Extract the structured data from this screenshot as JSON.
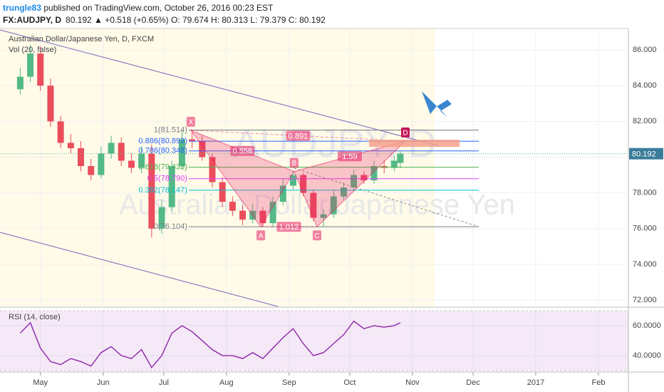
{
  "header": {
    "publisher": "trungle83",
    "published": " published on TradingView.com, October 26, 2016 00:23 EST",
    "symbol": "FX:AUDJPY, D",
    "quote": "80.192 ▲ +0.518 (+0.65%) O: 79.674 H: 80.313 L: 79.379 C: 80.192"
  },
  "chart_data": [
    {
      "type": "candlestick",
      "title": "Australian Dollar/Japanese Yen, D, FXCM",
      "subtitle": "Vol (20, false)",
      "watermark": [
        "AUDJPY, D",
        "Australian Dollar/Japanese Yen"
      ],
      "x": [
        -10,
        -5,
        0,
        5,
        10,
        15,
        20,
        25,
        30,
        35,
        40,
        45,
        50,
        55,
        60,
        65,
        70,
        75,
        80,
        85,
        90,
        95,
        100,
        105,
        110,
        115,
        120,
        125,
        130,
        135,
        140,
        145,
        150,
        155,
        160,
        165,
        170,
        175,
        178
      ],
      "open": [
        83.8,
        84.5,
        85.8,
        84.0,
        82.0,
        80.8,
        80.5,
        79.5,
        79.0,
        80.2,
        80.8,
        79.8,
        79.4,
        80.2,
        76.0,
        77.2,
        79.5,
        81.0,
        80.9,
        80.0,
        78.6,
        77.5,
        77.0,
        76.5,
        77.0,
        76.3,
        77.5,
        78.4,
        79.0,
        78.0,
        76.6,
        76.8,
        77.8,
        78.3,
        79.0,
        78.7,
        79.5,
        79.4,
        79.674
      ],
      "high": [
        85.0,
        86.3,
        86.2,
        84.4,
        82.3,
        81.3,
        80.9,
        79.9,
        80.6,
        81.2,
        81.1,
        80.2,
        80.6,
        80.7,
        77.6,
        79.8,
        81.5,
        81.4,
        81.2,
        80.2,
        78.9,
        77.8,
        77.3,
        77.4,
        77.2,
        77.8,
        78.8,
        79.2,
        79.1,
        78.2,
        77.1,
        78.1,
        78.6,
        79.3,
        79.2,
        79.8,
        79.8,
        80.1,
        80.313
      ],
      "low": [
        83.5,
        84.2,
        83.7,
        81.7,
        80.5,
        80.2,
        79.2,
        78.7,
        78.8,
        79.9,
        79.5,
        79.1,
        79.1,
        75.5,
        75.7,
        77.0,
        79.3,
        80.5,
        79.8,
        78.3,
        77.2,
        76.7,
        76.2,
        76.3,
        76.1,
        76.1,
        77.3,
        78.2,
        77.8,
        76.4,
        76.1,
        76.6,
        77.6,
        78.1,
        78.5,
        78.5,
        79.1,
        79.2,
        79.379
      ],
      "close": [
        84.5,
        85.8,
        84.0,
        82.0,
        80.8,
        80.5,
        79.5,
        79.0,
        80.2,
        80.8,
        79.8,
        79.4,
        80.2,
        76.0,
        77.2,
        79.5,
        81.0,
        80.9,
        80.0,
        78.6,
        77.5,
        77.0,
        76.5,
        77.0,
        76.3,
        77.5,
        78.4,
        79.0,
        78.0,
        76.6,
        76.8,
        77.8,
        78.3,
        79.0,
        78.7,
        79.5,
        79.4,
        79.8,
        80.192
      ],
      "up_color": "#53b987",
      "down_color": "#eb4d5c",
      "xlim": [
        -20,
        290.8
      ],
      "ylim": [
        71.64,
        87.2
      ],
      "yticks": [
        {
          "value": 72,
          "label": "72.000"
        },
        {
          "value": 74,
          "label": "74.000"
        },
        {
          "value": 76,
          "label": "76.000"
        },
        {
          "value": 78,
          "label": "78.000"
        },
        {
          "value": 80,
          "label": "80.000"
        },
        {
          "value": 82,
          "label": "82.000"
        },
        {
          "value": 84,
          "label": "84.000"
        },
        {
          "value": 86,
          "label": "86.000"
        }
      ],
      "last_price": {
        "value": 80.192,
        "label": "80.192"
      },
      "pattern": {
        "labels": [
          "X",
          "A",
          "B",
          "C",
          "D"
        ],
        "x": [
          74.4,
          109,
          125.5,
          136.8,
          180.5
        ],
        "y": [
          81.5,
          76.1,
          79.2,
          76.1,
          80.9
        ],
        "ratios": [
          "0.558",
          "0.891",
          "1.012",
          "1.59"
        ],
        "color": "#e91e63"
      },
      "fib_levels": [
        {
          "value": 81.514,
          "label": "1(81.514)",
          "color": "#787b86"
        },
        {
          "value": 80.893,
          "label": "0.886(80.893)",
          "color": "#2962ff"
        },
        {
          "value": 80.348,
          "label": "0.786(80.348)",
          "color": "#2962ff"
        },
        {
          "value": 79.433,
          "label": "0.618(79.433)",
          "color": "#4caf50"
        },
        {
          "value": 78.79,
          "label": "0.5(78.790)",
          "color": "#e040fb"
        },
        {
          "value": 78.147,
          "label": "0.382(78.147)",
          "color": "#00bcd4"
        },
        {
          "value": 76.104,
          "label": "0(76.104)",
          "color": "#787b86"
        }
      ]
    },
    {
      "type": "line",
      "title": "RSI (14, close)",
      "color": "#8e24aa",
      "x": [
        -10,
        -5,
        0,
        5,
        10,
        15,
        20,
        25,
        30,
        35,
        40,
        45,
        50,
        55,
        60,
        65,
        70,
        75,
        80,
        85,
        90,
        95,
        100,
        105,
        110,
        115,
        120,
        125,
        130,
        135,
        140,
        145,
        150,
        155,
        160,
        165,
        170,
        175,
        178
      ],
      "values": [
        55,
        62,
        45,
        36,
        34,
        38,
        36,
        33,
        42,
        46,
        40,
        38,
        44,
        32,
        40,
        55,
        60,
        56,
        50,
        44,
        40,
        40,
        38,
        42,
        38,
        45,
        52,
        58,
        48,
        40,
        42,
        48,
        54,
        63,
        58,
        60,
        59,
        60,
        62
      ],
      "band": [
        30,
        70
      ],
      "xlim": [
        -20,
        290.8
      ],
      "ylim": [
        29,
        71.4
      ],
      "yticks": [
        {
          "value": 40,
          "label": "40.0000"
        },
        {
          "value": 60,
          "label": "60.0000"
        }
      ],
      "xticks": [
        {
          "value": 0,
          "label": "May"
        },
        {
          "value": 31,
          "label": "Jun"
        },
        {
          "value": 61,
          "label": "Jul"
        },
        {
          "value": 92,
          "label": "Aug"
        },
        {
          "value": 123,
          "label": "Sep"
        },
        {
          "value": 153,
          "label": "Oct"
        },
        {
          "value": 184,
          "label": "Nov"
        },
        {
          "value": 214,
          "label": "Dec"
        },
        {
          "value": 245,
          "label": "2017"
        },
        {
          "value": 276,
          "label": "Feb"
        }
      ]
    }
  ]
}
